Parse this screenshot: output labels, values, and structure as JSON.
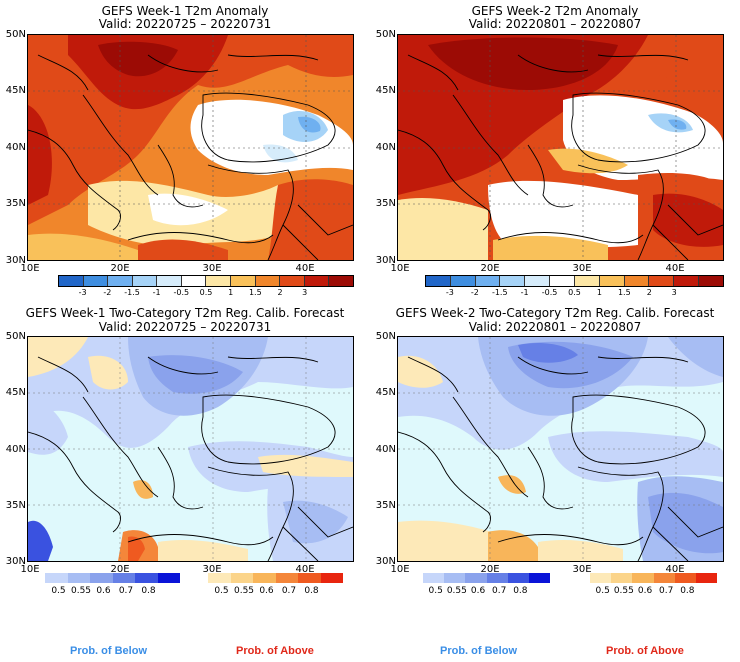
{
  "panels": [
    {
      "title": "GEFS Week-1 T2m Anomaly",
      "valid": "Valid: 20220725 – 20220731"
    },
    {
      "title": "GEFS Week-2 T2m Anomaly",
      "valid": "Valid: 20220801 – 20220807"
    },
    {
      "title": "GEFS Week-1 Two-Category T2m Reg. Calib. Forecast",
      "valid": "Valid: 20220725 – 20220731"
    },
    {
      "title": "GEFS Week-2 Two-Category T2m Reg. Calib. Forecast",
      "valid": "Valid: 20220801 – 20220807"
    }
  ],
  "axes": {
    "lat_labels": [
      "50N",
      "45N",
      "40N",
      "35N",
      "30N"
    ],
    "lon_labels": [
      "10E",
      "20E",
      "30E",
      "40E"
    ]
  },
  "anomaly_colorbar": {
    "labels": [
      "-3",
      "-2",
      "-1.5",
      "-1",
      "-0.5",
      "0.5",
      "1",
      "1.5",
      "2",
      "3"
    ],
    "colors": [
      "#2166c8",
      "#3f8ee0",
      "#6fb0f0",
      "#a6d3f7",
      "#d6ecfb",
      "#ffffff",
      "#fde7a6",
      "#f9c15a",
      "#f0862b",
      "#e04a18",
      "#c01a0a",
      "#9c0b05"
    ]
  },
  "prob_colorbar": {
    "below_labels": [
      "0.5",
      "0.55",
      "0.6",
      "0.7",
      "0.8"
    ],
    "below_colors": [
      "#c6d6fa",
      "#a7bdf3",
      "#8aa2ec",
      "#6680e6",
      "#3a52e0",
      "#0a14d8"
    ],
    "above_labels": [
      "0.5",
      "0.55",
      "0.6",
      "0.7",
      "0.8"
    ],
    "above_colors": [
      "#fde9b8",
      "#fbd48a",
      "#f8b55a",
      "#f4863a",
      "#ef5a20",
      "#e8250f"
    ]
  },
  "footer": {
    "below": "Prob. of Below",
    "above": "Prob. of Above",
    "below_color": "#3a8ee6",
    "above_color": "#e0281a"
  }
}
